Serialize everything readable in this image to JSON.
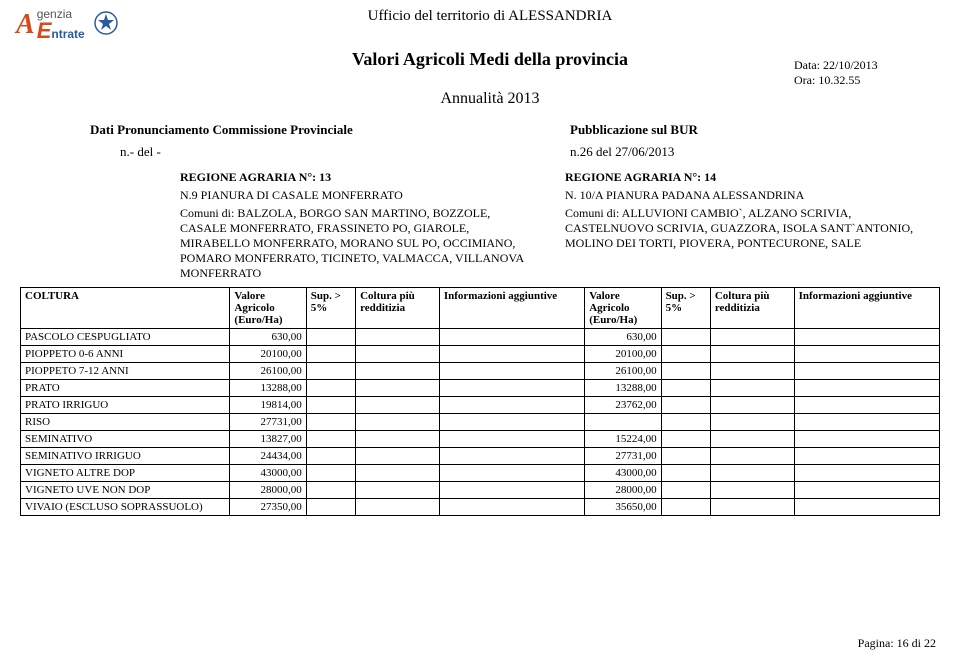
{
  "header": {
    "agency_big_letter": "A",
    "agency_top": "genzia",
    "agency_bottom": "ntrate",
    "ufficio_prefix": "Ufficio del territorio di",
    "ufficio_city": "ALESSANDRIA",
    "title": "Valori Agricoli Medi della provincia",
    "annuality": "Annualità 2013",
    "data_label": "Data:",
    "data_value": "22/10/2013",
    "ora_label": "Ora:",
    "ora_value": "10.32.55"
  },
  "pronunciamento": {
    "left_label": "Dati Pronunciamento Commissione Provinciale",
    "right_label": "Pubblicazione sul BUR",
    "ndel": "n.- del  -",
    "ndel_right": "n.26 del 27/06/2013"
  },
  "regions": {
    "a": {
      "region_title": "REGIONE AGRARIA N°: 13",
      "region_name": "N.9 PIANURA DI CASALE MONFERRATO",
      "comuni": "Comuni di: BALZOLA, BORGO SAN MARTINO, BOZZOLE, CASALE MONFERRATO, FRASSINETO PO, GIAROLE, MIRABELLO MONFERRATO, MORANO SUL PO, OCCIMIANO, POMARO MONFERRATO, TICINETO, VALMACCA, VILLANOVA MONFERRATO"
    },
    "b": {
      "region_title": "REGIONE AGRARIA N°: 14",
      "region_name": "N. 10/A PIANURA PADANA ALESSANDRINA",
      "comuni": "Comuni di: ALLUVIONI CAMBIO`, ALZANO SCRIVIA, CASTELNUOVO SCRIVIA, GUAZZORA, ISOLA SANT`ANTONIO, MOLINO DEI TORTI, PIOVERA, PONTECURONE, SALE"
    }
  },
  "table": {
    "columns": {
      "coltura": "COLTURA",
      "valore": "Valore Agricolo (Euro/Ha)",
      "sup": "Sup. > 5%",
      "coltura_piu": "Coltura più redditizia",
      "info": "Informazioni aggiuntive"
    },
    "rows": [
      {
        "coltura": "PASCOLO CESPUGLIATO",
        "va": "630,00",
        "vb": "630,00"
      },
      {
        "coltura": "PIOPPETO 0-6 ANNI",
        "va": "20100,00",
        "vb": "20100,00"
      },
      {
        "coltura": "PIOPPETO 7-12 ANNI",
        "va": "26100,00",
        "vb": "26100,00"
      },
      {
        "coltura": "PRATO",
        "va": "13288,00",
        "vb": "13288,00"
      },
      {
        "coltura": "PRATO IRRIGUO",
        "va": "19814,00",
        "vb": "23762,00"
      },
      {
        "coltura": "RISO",
        "va": "27731,00",
        "vb": ""
      },
      {
        "coltura": "SEMINATIVO",
        "va": "13827,00",
        "vb": "15224,00"
      },
      {
        "coltura": "SEMINATIVO IRRIGUO",
        "va": "24434,00",
        "vb": "27731,00"
      },
      {
        "coltura": "VIGNETO ALTRE DOP",
        "va": "43000,00",
        "vb": "43000,00"
      },
      {
        "coltura": "VIGNETO UVE NON DOP",
        "va": "28000,00",
        "vb": "28000,00"
      },
      {
        "coltura": "VIVAIO (ESCLUSO SOPRASSUOLO)",
        "va": "27350,00",
        "vb": "35650,00"
      }
    ]
  },
  "footer": {
    "pagina": "Pagina: 16 di 22"
  },
  "colors": {
    "accent_orange": "#d84a1a",
    "accent_blue": "#2a5aa0",
    "text": "#000000",
    "bg": "#ffffff",
    "border": "#000000"
  }
}
